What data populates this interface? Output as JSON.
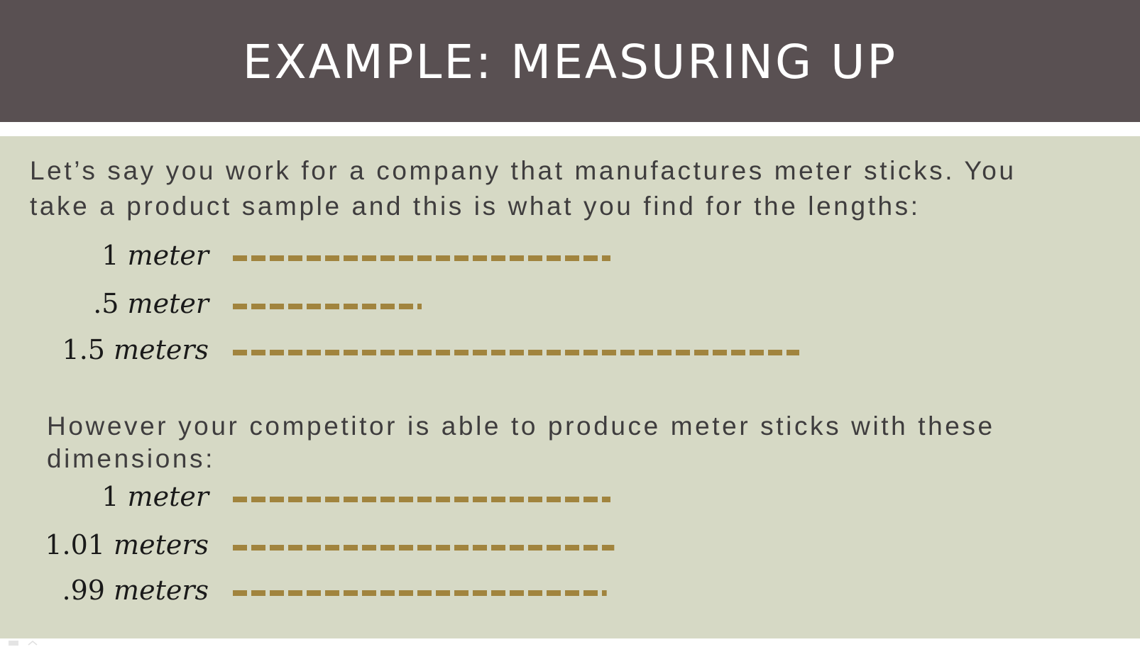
{
  "slide": {
    "title": "EXAMPLE: MEASURING UP",
    "intro": {
      "line1": "Let’s say you work for a company that manufactures meter sticks. You",
      "line2": "take a product sample and this is what you find for the lengths:"
    },
    "sample_measurements": [
      {
        "number": "1",
        "unit": "meter",
        "value_m": 1.0
      },
      {
        "number": ".5",
        "unit": "meter",
        "value_m": 0.5
      },
      {
        "number": "1.5",
        "unit": "meters",
        "value_m": 1.5
      }
    ],
    "competitor": {
      "line1": "However your competitor is able to produce meter sticks with these",
      "line2": "dimensions:"
    },
    "competitor_measurements": [
      {
        "number": "1",
        "unit": "meter",
        "value_m": 1.0
      },
      {
        "number": "1.01",
        "unit": "meters",
        "value_m": 1.01
      },
      {
        "number": ".99",
        "unit": "meters",
        "value_m": 0.99
      }
    ]
  },
  "colors": {
    "title_bar": "#595052",
    "content_bg": "#d6d9c5",
    "stick": "#a1843e"
  },
  "icons": [
    "slide-nav-icon",
    "slide-forward-icon"
  ]
}
